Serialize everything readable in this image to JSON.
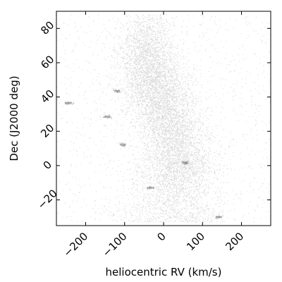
{
  "chart_data": {
    "type": "scatter",
    "title": "",
    "xlabel": "heliocentric RV (km/s)",
    "ylabel": "Dec (J2000 deg)",
    "xlim": [
      -275,
      275
    ],
    "ylim": [
      -35,
      90
    ],
    "xticks": [
      -200,
      -100,
      0,
      100,
      200
    ],
    "xtick_labels": [
      "−200",
      "−100",
      "0",
      "100",
      "200"
    ],
    "yticks": [
      -20,
      0,
      20,
      40,
      60,
      80
    ],
    "ytick_labels": [
      "−20",
      "0",
      "20",
      "40",
      "60",
      "80"
    ],
    "grid": false,
    "legend": "none",
    "point_color": "#000000",
    "density_ridge": [
      {
        "dec": -30,
        "rv_center": 20,
        "rv_spread": 95,
        "density": 0.55
      },
      {
        "dec": -20,
        "rv_center": 25,
        "rv_spread": 70,
        "density": 0.45
      },
      {
        "dec": -10,
        "rv_center": 30,
        "rv_spread": 65,
        "density": 0.6
      },
      {
        "dec": 0,
        "rv_center": 35,
        "rv_spread": 60,
        "density": 0.95
      },
      {
        "dec": 10,
        "rv_center": 30,
        "rv_spread": 55,
        "density": 0.75
      },
      {
        "dec": 20,
        "rv_center": 20,
        "rv_spread": 55,
        "density": 0.85
      },
      {
        "dec": 30,
        "rv_center": 5,
        "rv_spread": 55,
        "density": 0.9
      },
      {
        "dec": 40,
        "rv_center": -10,
        "rv_spread": 55,
        "density": 1.0
      },
      {
        "dec": 50,
        "rv_center": -25,
        "rv_spread": 55,
        "density": 1.0
      },
      {
        "dec": 60,
        "rv_center": -40,
        "rv_spread": 50,
        "density": 0.8
      },
      {
        "dec": 70,
        "rv_center": -45,
        "rv_spread": 45,
        "density": 0.6
      },
      {
        "dec": 80,
        "rv_center": -40,
        "rv_spread": 40,
        "density": 0.35
      },
      {
        "dec": 87,
        "rv_center": -40,
        "rv_spread": 35,
        "density": 0.2
      }
    ],
    "background_density": 0.12,
    "compact_clusters": [
      {
        "rv": -245,
        "dec": 36.5
      },
      {
        "rv": -120,
        "dec": 43.5
      },
      {
        "rv": -145,
        "dec": 28.5
      },
      {
        "rv": -105,
        "dec": 12
      },
      {
        "rv": 55,
        "dec": 1.5
      },
      {
        "rv": -35,
        "dec": -13
      },
      {
        "rv": 140,
        "dec": -30
      }
    ]
  }
}
